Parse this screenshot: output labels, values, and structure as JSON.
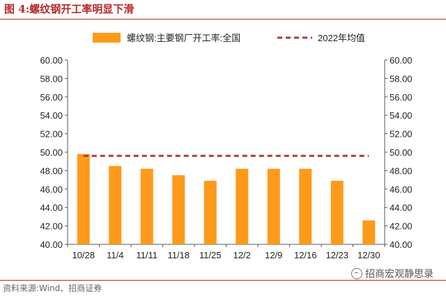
{
  "header": {
    "title": "图 4:螺纹钢开工率明显下滑"
  },
  "footer": {
    "source": "资料来源:Wind、招商证券",
    "watermark": "招商宏观静思录"
  },
  "colors": {
    "bar": "#ff9a1a",
    "avg_line": "#b03a3a",
    "title": "#b52a2a"
  },
  "chart_data": {
    "type": "bar",
    "categories": [
      "10/28",
      "11/4",
      "11/11",
      "11/18",
      "11/25",
      "12/2",
      "12/9",
      "12/16",
      "12/23",
      "12/30"
    ],
    "series": [
      {
        "name": "螺纹钢:主要钢厂开工率:全国",
        "type": "bar",
        "values": [
          49.8,
          48.5,
          48.2,
          47.5,
          46.9,
          48.2,
          48.2,
          48.2,
          46.9,
          42.6
        ]
      },
      {
        "name": "2022年均值",
        "type": "line-dashed",
        "value": 49.6
      }
    ],
    "ylim": [
      40,
      60
    ],
    "yticks": [
      "40.00",
      "42.00",
      "44.00",
      "46.00",
      "48.00",
      "50.00",
      "52.00",
      "54.00",
      "56.00",
      "58.00",
      "60.00"
    ],
    "secondary_yticks": [
      "40.00",
      "42.00",
      "44.00",
      "46.00",
      "48.00",
      "50.00",
      "52.00",
      "54.00",
      "56.00",
      "58.00",
      "60.00"
    ],
    "legend_position": "top-center",
    "grid": false
  }
}
